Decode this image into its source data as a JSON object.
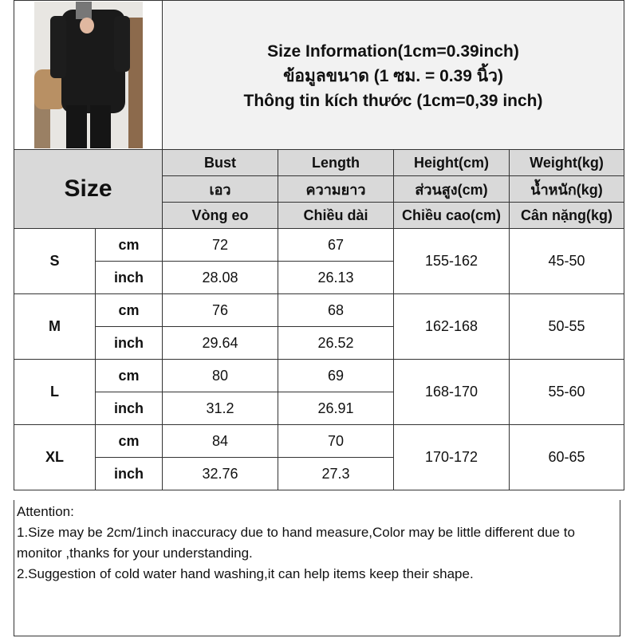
{
  "title": {
    "lines": [
      "Size Information(1cm=0.39inch)",
      "ข้อมูลขนาด (1 ซม. = 0.39 นิ้ว)",
      "Thông tin kích thước (1cm=0,39 inch)"
    ]
  },
  "header": {
    "size_label": "Size",
    "rows": [
      [
        "Bust",
        "Length",
        "Height(cm)",
        "Weight(kg)"
      ],
      [
        "เอว",
        "ความยาว",
        "ส่วนสูง(cm)",
        "น้ำหนัก(kg)"
      ],
      [
        "Vòng eo",
        "Chiều dài",
        "Chiều cao(cm)",
        "Cân nặng(kg)"
      ]
    ]
  },
  "sizes": [
    {
      "size": "S",
      "cm": {
        "unit": "cm",
        "bust": "72",
        "length": "67"
      },
      "inch": {
        "unit": "inch",
        "bust": "28.08",
        "length": "26.13"
      },
      "height": "155-162",
      "weight": "45-50"
    },
    {
      "size": "M",
      "cm": {
        "unit": "cm",
        "bust": "76",
        "length": "68"
      },
      "inch": {
        "unit": "inch",
        "bust": "29.64",
        "length": "26.52"
      },
      "height": "162-168",
      "weight": "50-55"
    },
    {
      "size": "L",
      "cm": {
        "unit": "cm",
        "bust": "80",
        "length": "69"
      },
      "inch": {
        "unit": "inch",
        "bust": "31.2",
        "length": "26.91"
      },
      "height": "168-170",
      "weight": "55-60"
    },
    {
      "size": "XL",
      "cm": {
        "unit": "cm",
        "bust": "84",
        "length": "70"
      },
      "inch": {
        "unit": "inch",
        "bust": "32.76",
        "length": "27.3"
      },
      "height": "170-172",
      "weight": "60-65"
    }
  ],
  "attention": {
    "heading": "Attention:",
    "lines": [
      "1.Size may be 2cm/1inch inaccuracy due to hand measure,Color may be little different due to monitor ,thanks for your understanding.",
      "2.Suggestion of cold water hand washing,it can help items keep their shape."
    ]
  }
}
